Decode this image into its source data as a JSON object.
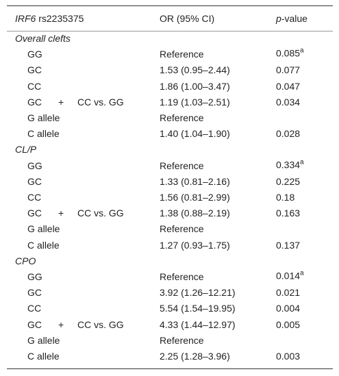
{
  "header": {
    "gene": "IRF6",
    "snp": "rs2235375",
    "or": "OR (95% CI)",
    "p_italic": "p",
    "p_rest": "-value"
  },
  "sections": [
    {
      "title": "Overall clefts",
      "rows": [
        {
          "label": "GG",
          "or": "Reference",
          "p": "0.085",
          "note": "a"
        },
        {
          "label": "GC",
          "or": "1.53 (0.95–2.44)",
          "p": "0.077"
        },
        {
          "label": "CC",
          "or": "1.86 (1.00–3.47)",
          "p": "0.047"
        },
        {
          "label_parts": [
            "GC",
            "+",
            "CC vs. GG"
          ],
          "or": "1.19 (1.03–2.51)",
          "p": "0.034"
        },
        {
          "label": "G allele",
          "or": "Reference"
        },
        {
          "label": "C allele",
          "or": "1.40 (1.04–1.90)",
          "p": "0.028"
        }
      ]
    },
    {
      "title": "CL/P",
      "rows": [
        {
          "label": "GG",
          "or": "Reference",
          "p": "0.334",
          "note": "a"
        },
        {
          "label": "GC",
          "or": "1.33 (0.81–2.16)",
          "p": "0.225"
        },
        {
          "label": "CC",
          "or": "1.56 (0.81–2.99)",
          "p": "0.18"
        },
        {
          "label_parts": [
            "GC",
            "+",
            "CC vs. GG"
          ],
          "or": "1.38 (0.88–2.19)",
          "p": "0.163"
        },
        {
          "label": "G allele",
          "or": "Reference"
        },
        {
          "label": "C allele",
          "or": "1.27 (0.93–1.75)",
          "p": "0.137"
        }
      ]
    },
    {
      "title": "CPO",
      "rows": [
        {
          "label": "GG",
          "or": "Reference",
          "p": "0.014",
          "note": "a"
        },
        {
          "label": "GC",
          "or": "3.92 (1.26–12.21)",
          "p": "0.021"
        },
        {
          "label": "CC",
          "or": "5.54 (1.54–19.95)",
          "p": "0.004"
        },
        {
          "label_parts": [
            "GC",
            "+",
            "CC vs. GG"
          ],
          "or": "4.33 (1.44–12.97)",
          "p": "0.005"
        },
        {
          "label": "G allele",
          "or": "Reference"
        },
        {
          "label": "C allele",
          "or": "2.25 (1.28–3.96)",
          "p": "0.003"
        }
      ]
    }
  ]
}
